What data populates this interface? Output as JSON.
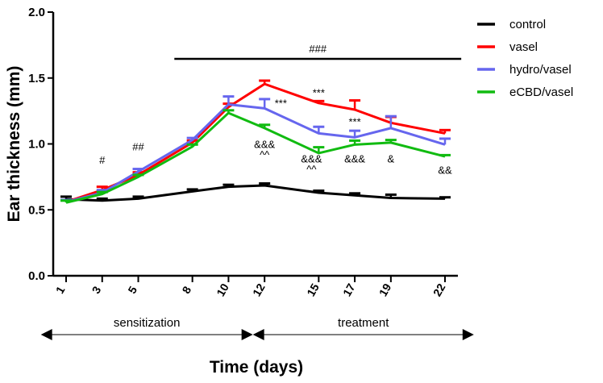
{
  "chart_data": {
    "type": "line",
    "xlabel": "Time (days)",
    "ylabel": "Ear thickness (mm)",
    "ylim": [
      0.0,
      2.0
    ],
    "yticks": [
      "0.0",
      "0.5",
      "1.0",
      "1.5",
      "2.0"
    ],
    "x": [
      1,
      3,
      5,
      8,
      10,
      12,
      15,
      17,
      19,
      22
    ],
    "x_tick_labels": [
      "1",
      "3",
      "5",
      "8",
      "10",
      "12",
      "15",
      "17",
      "19",
      "22"
    ],
    "series": [
      {
        "name": "control",
        "color": "#000000",
        "values": [
          0.58,
          0.57,
          0.585,
          0.64,
          0.675,
          0.685,
          0.63,
          0.61,
          0.59,
          0.585
        ],
        "errors": [
          0.02,
          0.015,
          0.015,
          0.015,
          0.015,
          0.015,
          0.015,
          0.015,
          0.025,
          0.01
        ]
      },
      {
        "name": "vasel",
        "color": "#ff0000",
        "values": [
          0.56,
          0.65,
          0.765,
          1.01,
          1.28,
          1.455,
          1.31,
          1.26,
          1.16,
          1.08
        ],
        "errors": [
          0.015,
          0.025,
          0.02,
          0.015,
          0.025,
          0.025,
          0.015,
          0.07,
          0.045,
          0.025
        ]
      },
      {
        "name": "hydro/vasel",
        "color": "#6666ee",
        "values": [
          0.56,
          0.63,
          0.79,
          1.03,
          1.3,
          1.27,
          1.08,
          1.05,
          1.12,
          0.995
        ],
        "errors": [
          0.015,
          0.02,
          0.02,
          0.015,
          0.06,
          0.07,
          0.05,
          0.05,
          0.09,
          0.045
        ]
      },
      {
        "name": "eCBD/vasel",
        "color": "#11bb11",
        "values": [
          0.555,
          0.62,
          0.75,
          0.98,
          1.235,
          1.12,
          0.93,
          0.995,
          1.01,
          0.905
        ],
        "errors": [
          0.015,
          0.015,
          0.015,
          0.015,
          0.02,
          0.025,
          0.045,
          0.03,
          0.02,
          0.01
        ]
      }
    ],
    "annotations": [
      {
        "text": "#",
        "x": 3,
        "y": 0.85
      },
      {
        "text": "##",
        "x": 5,
        "y": 0.95
      },
      {
        "text": "***",
        "x": 12.9,
        "y": 1.28
      },
      {
        "text": "***",
        "x": 15,
        "y": 1.36
      },
      {
        "text": "***",
        "x": 17,
        "y": 1.14
      },
      {
        "text": "&&&",
        "x": 12,
        "y": 0.97
      },
      {
        "text": "^^",
        "x": 12,
        "y": 0.89
      },
      {
        "text": "&&&",
        "x": 14.6,
        "y": 0.86
      },
      {
        "text": "^^",
        "x": 14.6,
        "y": 0.78
      },
      {
        "text": "&&&",
        "x": 17,
        "y": 0.86
      },
      {
        "text": "&",
        "x": 19,
        "y": 0.86
      },
      {
        "text": "&&",
        "x": 22,
        "y": 0.775
      }
    ],
    "significance_bar": {
      "label": "###",
      "x_start": 7,
      "x_end": 22.9,
      "y": 1.645
    },
    "phases": [
      {
        "label": "sensitization",
        "x_start": -0.4,
        "x_end": 11.35
      },
      {
        "label": "treatment",
        "x_start": 11.35,
        "x_end": 23.6
      }
    ],
    "legend_position": "top-right"
  }
}
